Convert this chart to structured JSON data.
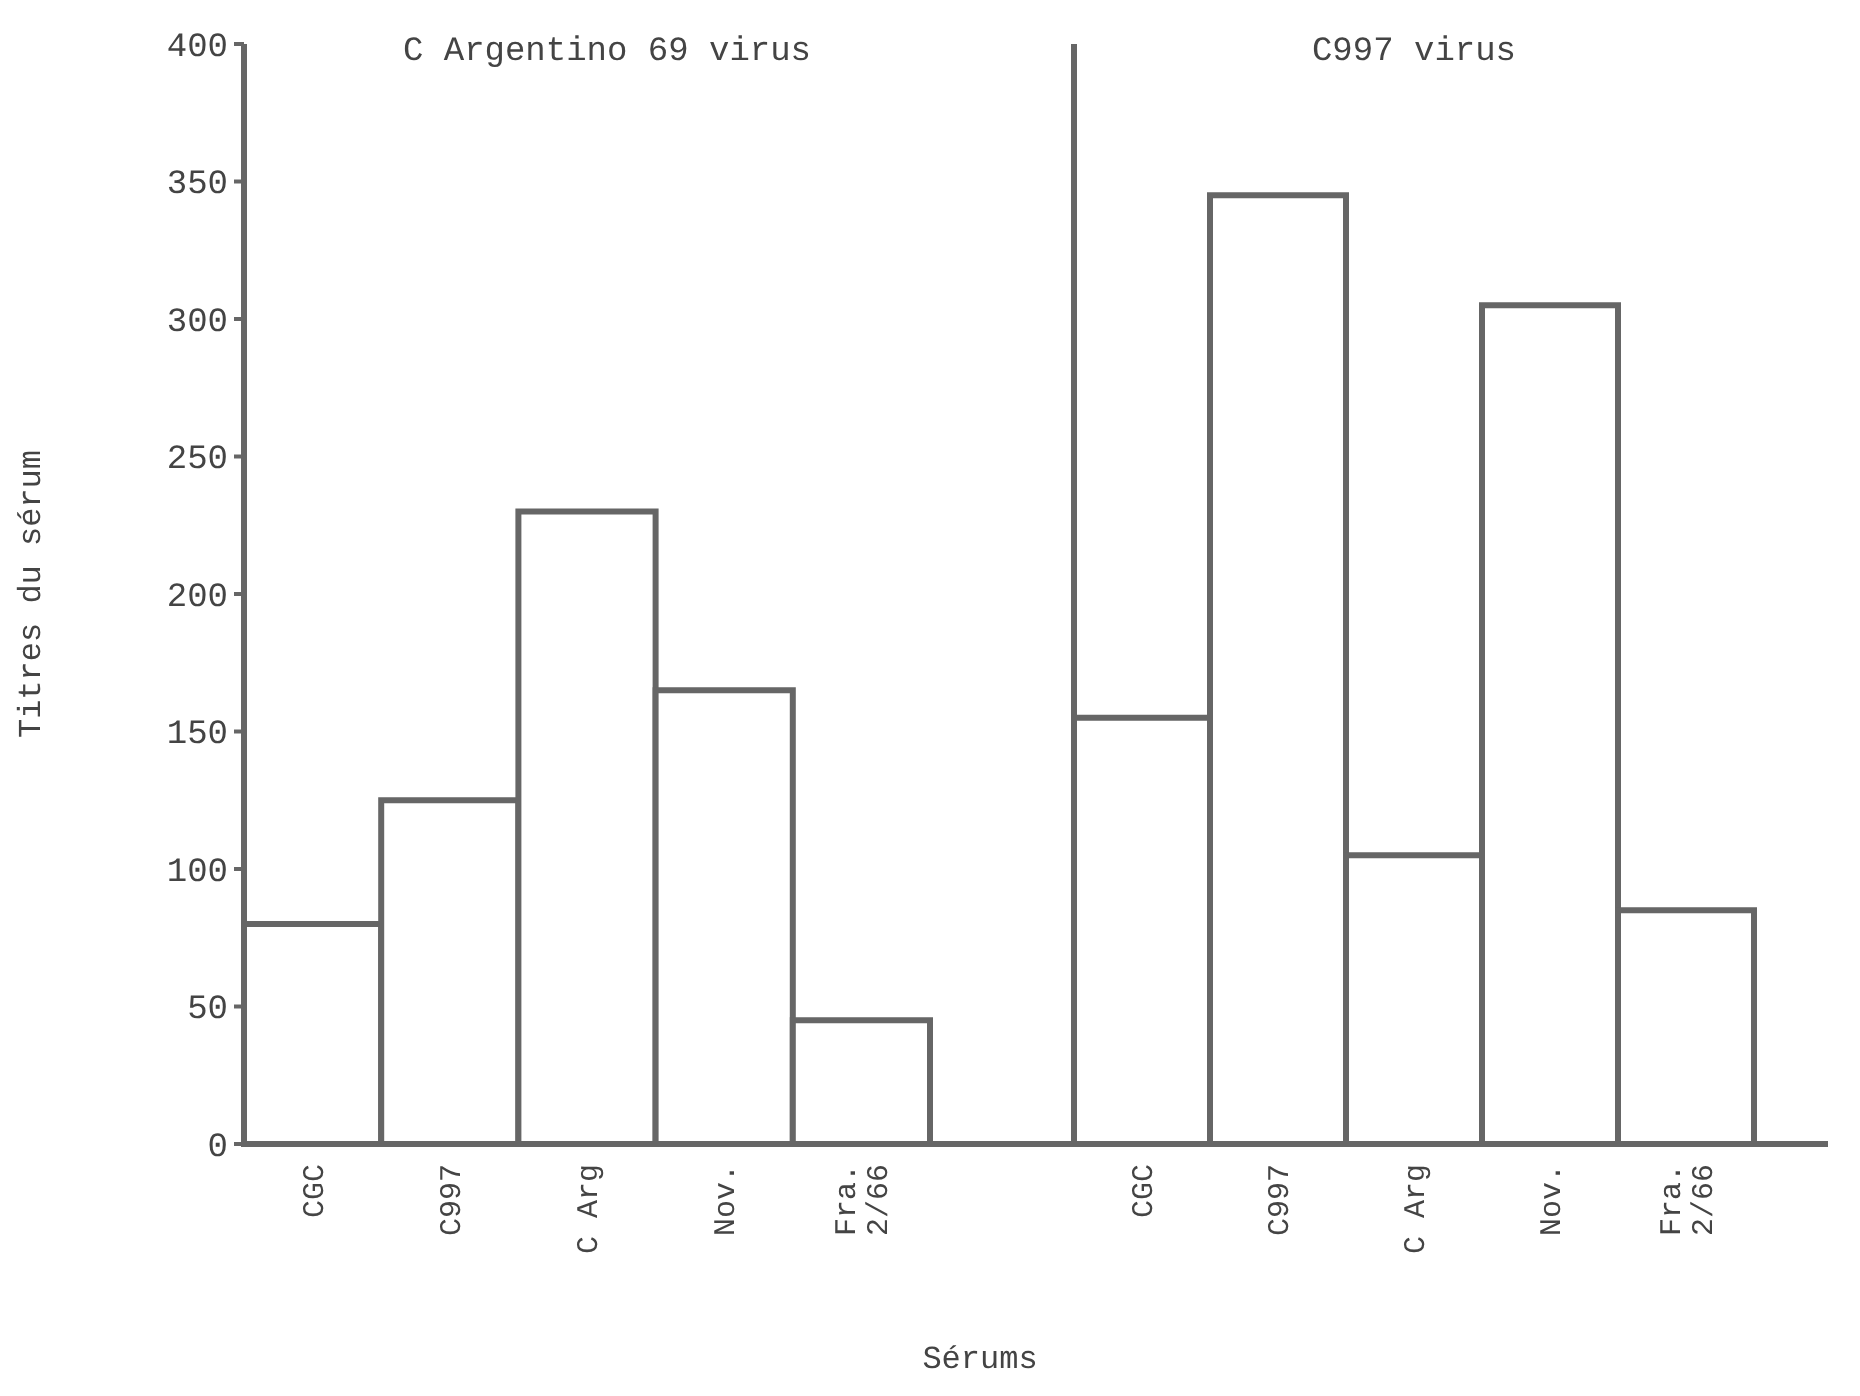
{
  "chart_data": [
    {
      "type": "bar",
      "title": "C Argentino 69 virus",
      "ylabel": "Titres du sérum",
      "xlabel": "Sérums",
      "categories": [
        "CGC",
        "C997",
        "C Arg",
        "Nov.",
        "Fra. 2/66"
      ],
      "values": [
        80,
        125,
        230,
        165,
        45
      ],
      "color": "#ffffff",
      "ylim": [
        0,
        400
      ],
      "yticks": [
        0,
        50,
        100,
        150,
        200,
        250,
        300,
        350,
        400
      ],
      "grid": false
    },
    {
      "type": "bar",
      "title": "C997 virus",
      "categories": [
        "CGC",
        "C997",
        "C Arg",
        "Nov.",
        "Fra. 2/66"
      ],
      "values": [
        155,
        345,
        105,
        305,
        85
      ],
      "color": "#ffffff",
      "ylim": [
        0,
        400
      ],
      "yticks": [
        0,
        50,
        100,
        150,
        200,
        250,
        300,
        350,
        400
      ],
      "tick_labels": "x",
      "grid": false
    }
  ]
}
